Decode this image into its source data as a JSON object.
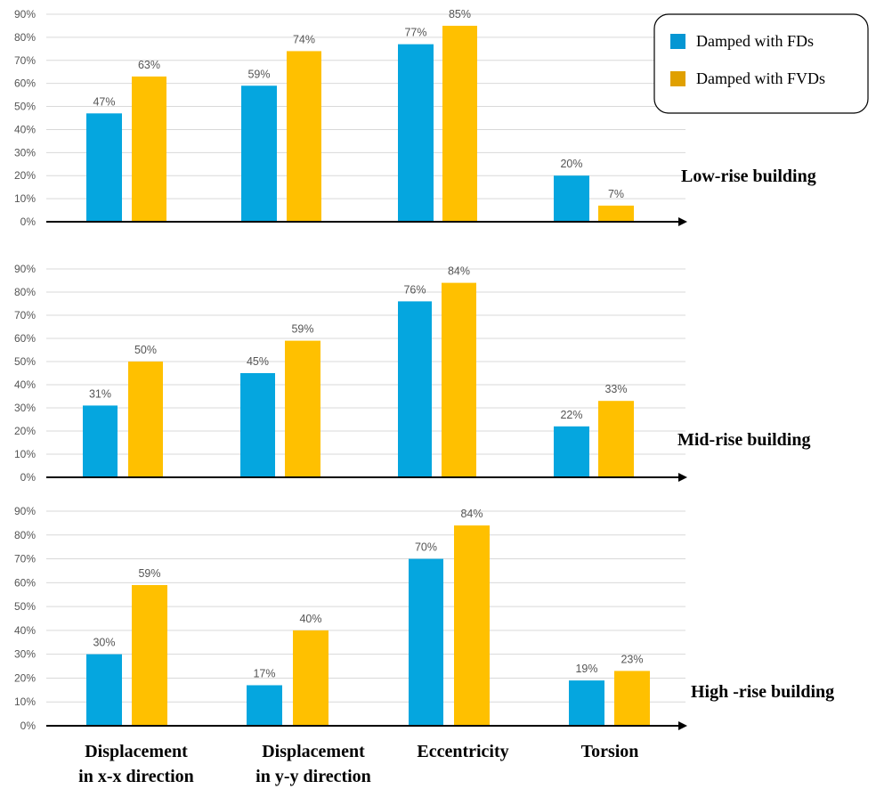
{
  "chart_data": [
    {
      "type": "bar",
      "title": "Low-rise building",
      "categories": [
        "Displacement in x-x direction",
        "Displacement in y-y direction",
        "Eccentricity",
        "Torsion"
      ],
      "series": [
        {
          "name": "Damped with FDs",
          "values": [
            47,
            59,
            77,
            20
          ],
          "labels": [
            "47%",
            "59%",
            "77%",
            "20%"
          ]
        },
        {
          "name": "Damped with FVDs",
          "values": [
            63,
            74,
            85,
            7
          ],
          "labels": [
            "63%",
            "74%",
            "85%",
            "7%"
          ]
        }
      ],
      "ylim": [
        0,
        90
      ],
      "yticks": [
        "0%",
        "10%",
        "20%",
        "30%",
        "40%",
        "50%",
        "60%",
        "70%",
        "80%",
        "90%"
      ],
      "grid": true
    },
    {
      "type": "bar",
      "title": "Mid-rise building",
      "categories": [
        "Displacement in x-x direction",
        "Displacement in y-y direction",
        "Eccentricity",
        "Torsion"
      ],
      "series": [
        {
          "name": "Damped with FDs",
          "values": [
            31,
            45,
            76,
            22
          ],
          "labels": [
            "31%",
            "45%",
            "76%",
            "22%"
          ]
        },
        {
          "name": "Damped with FVDs",
          "values": [
            50,
            59,
            84,
            33
          ],
          "labels": [
            "50%",
            "59%",
            "84%",
            "33%"
          ]
        }
      ],
      "ylim": [
        0,
        90
      ],
      "yticks": [
        "0%",
        "10%",
        "20%",
        "30%",
        "40%",
        "50%",
        "60%",
        "70%",
        "80%",
        "90%"
      ],
      "grid": true
    },
    {
      "type": "bar",
      "title": "High -rise building",
      "categories": [
        "Displacement in x-x direction",
        "Displacement in y-y direction",
        "Eccentricity",
        "Torsion"
      ],
      "series": [
        {
          "name": "Damped with FDs",
          "values": [
            30,
            17,
            70,
            19
          ],
          "labels": [
            "30%",
            "17%",
            "70%",
            "19%"
          ]
        },
        {
          "name": "Damped with FVDs",
          "values": [
            59,
            40,
            84,
            23
          ],
          "labels": [
            "59%",
            "40%",
            "84%",
            "23%"
          ]
        }
      ],
      "ylim": [
        0,
        90
      ],
      "yticks": [
        "0%",
        "10%",
        "20%",
        "30%",
        "40%",
        "50%",
        "60%",
        "70%",
        "80%",
        "90%"
      ],
      "grid": true
    }
  ],
  "legend": {
    "placement": "top-right",
    "items": [
      {
        "label": "Damped with FDs",
        "color": "#0596d3"
      },
      {
        "label": "Damped with FVDs",
        "color": "#e0a000"
      }
    ]
  },
  "category_labels": [
    {
      "line1": "Displacement",
      "line2": "in x-x direction"
    },
    {
      "line1": "Displacement",
      "line2": "in y-y direction"
    },
    {
      "line1": "Eccentricity",
      "line2": ""
    },
    {
      "line1": "Torsion",
      "line2": ""
    }
  ],
  "colors": {
    "fds": "#05a6df",
    "fvds": "#ffc000",
    "grid": "#d9d9d9",
    "axis": "#000000"
  }
}
